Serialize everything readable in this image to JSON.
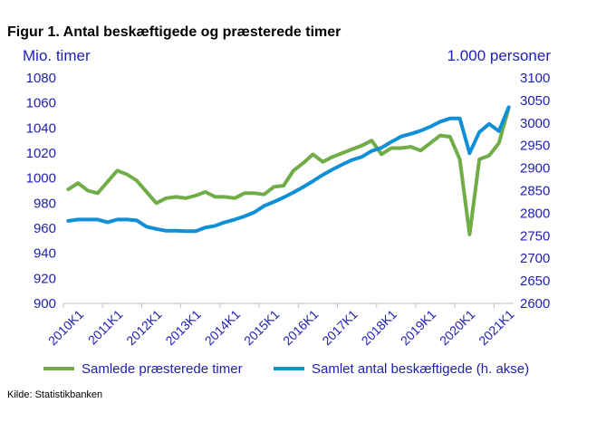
{
  "chart_data": {
    "type": "line",
    "title": "Figur 1. Antal beskæftigede og præsterede timer",
    "left_axis_label": "Mio. timer",
    "right_axis_label": "1.000 personer",
    "source": "Kilde: Statistikbanken",
    "left_ylim": [
      900,
      1080
    ],
    "right_ylim": [
      2600,
      3100
    ],
    "left_ticks": [
      "900",
      "920",
      "940",
      "960",
      "980",
      "1000",
      "1020",
      "1040",
      "1060",
      "1080"
    ],
    "right_ticks": [
      "2600",
      "2650",
      "2700",
      "2750",
      "2800",
      "2850",
      "2900",
      "2950",
      "3000",
      "3050",
      "3100"
    ],
    "x_tick_labels": [
      "2010K1",
      "2011K1",
      "2012K1",
      "2013K1",
      "2014K1",
      "2015K1",
      "2016K1",
      "2017K1",
      "2018K1",
      "2019K1",
      "2020K1",
      "2021K1"
    ],
    "grid": false,
    "legend_position": "bottom",
    "series": [
      {
        "name": "Samlede præsterede timer",
        "axis": "left",
        "color": "#70ad47",
        "values": [
          991,
          996,
          990,
          988,
          997,
          1006,
          1003,
          998,
          989,
          980,
          984,
          985,
          984,
          986,
          989,
          985,
          985,
          984,
          988,
          988,
          987,
          993,
          994,
          1006,
          1012,
          1019,
          1013,
          1017,
          1020,
          1023,
          1026,
          1030,
          1019,
          1024,
          1024,
          1025,
          1022,
          1028,
          1034,
          1033,
          1015,
          955,
          1015,
          1018,
          1028,
          1056
        ]
      },
      {
        "name": "Samlet antal beskæftigede (h. akse)",
        "axis": "right",
        "color": "#0f8fd5",
        "values": [
          2783,
          2786,
          2786,
          2786,
          2780,
          2786,
          2786,
          2784,
          2770,
          2765,
          2761,
          2761,
          2760,
          2760,
          2768,
          2772,
          2780,
          2786,
          2793,
          2802,
          2816,
          2825,
          2835,
          2846,
          2858,
          2871,
          2885,
          2897,
          2908,
          2918,
          2925,
          2938,
          2945,
          2958,
          2970,
          2976,
          2983,
          2992,
          3003,
          3010,
          3010,
          2933,
          2980,
          2998,
          2982,
          3035
        ]
      }
    ]
  }
}
